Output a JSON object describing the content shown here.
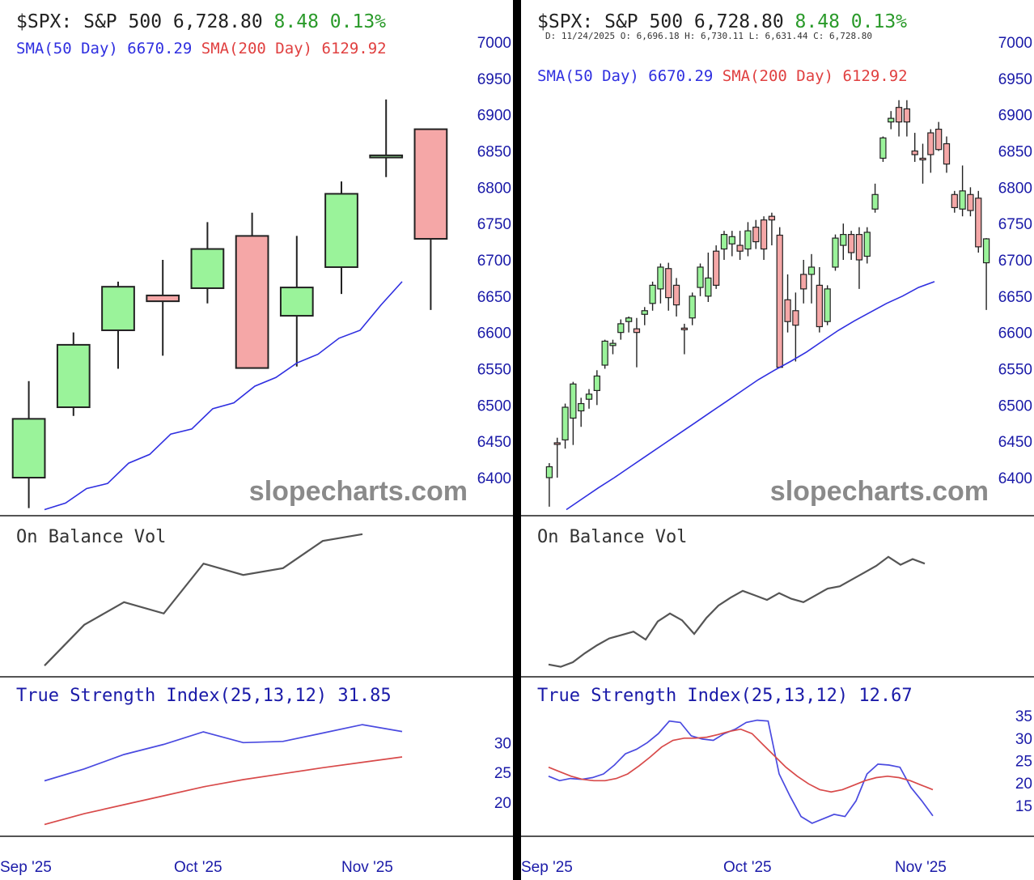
{
  "colors": {
    "up_fill": "#9af39a",
    "down_fill": "#f5a7a7",
    "candle_stroke": "#222222",
    "sma50": "#2f2fe0",
    "tsi_line": "#4a4ae0",
    "tsi_signal": "#d84a4a",
    "price_green": "#2a9a2a",
    "sma200_red": "#e04040",
    "axis_label": "#1a1aa8",
    "obv": "#555555",
    "watermark": "#8a8a8a",
    "separator": "#555555"
  },
  "watermark": "slopecharts.com",
  "panels": [
    {
      "id": "weekly",
      "header": {
        "symbol": "$SPX:",
        "name": "S&P 500",
        "last": "6,728.80",
        "change": "8.48",
        "change_pct": "0.13%",
        "ohlc": ""
      },
      "sma_label": {
        "sma50": "SMA(50 Day) 6670.29",
        "sma200": "SMA(200 Day) 6129.92"
      },
      "obv_title": "On Balance Vol",
      "tsi_title": "True Strength Index(25,13,12) 31.85",
      "x_ticks": [
        {
          "label": "Sep '25",
          "i": 0
        },
        {
          "label": "Oct '25",
          "i": 5
        },
        {
          "label": "Nov '25",
          "i": 10
        }
      ],
      "chart_data": {
        "type": "candlestick",
        "timeframe": "weekly",
        "ylim": [
          6370,
          7010
        ],
        "y_ticks": [
          6400,
          6450,
          6500,
          6550,
          6600,
          6650,
          6700,
          6750,
          6800,
          6850,
          6900,
          6950,
          7000
        ],
        "ohlc": [
          [
            6400,
            6533,
            6358,
            6481
          ],
          [
            6497,
            6600,
            6485,
            6583
          ],
          [
            6603,
            6670,
            6550,
            6663
          ],
          [
            6651,
            6700,
            6568,
            6643
          ],
          [
            6661,
            6752,
            6640,
            6715
          ],
          [
            6733,
            6765,
            6550,
            6551
          ],
          [
            6623,
            6733,
            6553,
            6662
          ],
          [
            6690,
            6808,
            6653,
            6791
          ],
          [
            6841,
            6921,
            6814,
            6844
          ],
          [
            6880,
            6880,
            6631,
            6729
          ]
        ],
        "sma50": [
          6356,
          6365,
          6385,
          6392,
          6420,
          6432,
          6460,
          6467,
          6495,
          6503,
          6526,
          6538,
          6558,
          6570,
          6592,
          6603,
          6638,
          6670
        ],
        "obv": [
          0.02,
          0.38,
          0.58,
          0.48,
          0.92,
          0.82,
          0.88,
          1.12,
          1.18
        ],
        "tsi_ylim": [
          15,
          36
        ],
        "tsi_ticks": [
          20,
          25,
          30
        ],
        "tsi": [
          23.6,
          25.6,
          28.0,
          29.7,
          31.8,
          30.0,
          30.2,
          31.6,
          33.0,
          31.85
        ],
        "tsi_signal": [
          16.3,
          18.1,
          19.6,
          21.1,
          22.6,
          23.8,
          24.8,
          25.8,
          26.7,
          27.6
        ]
      }
    },
    {
      "id": "daily",
      "header": {
        "symbol": "$SPX:",
        "name": "S&P 500",
        "last": "6,728.80",
        "change": "8.48",
        "change_pct": "0.13%",
        "ohlc": "D: 11/24/2025 O: 6,696.18 H: 6,730.11 L: 6,631.44 C: 6,728.80"
      },
      "sma_label": {
        "sma50": "SMA(50 Day) 6670.29",
        "sma200": "SMA(200 Day) 6129.92"
      },
      "obv_title": "On Balance Vol",
      "tsi_title": "True Strength Index(25,13,12) 12.67",
      "x_ticks": [
        {
          "label": "Sep '25",
          "i": 0
        },
        {
          "label": "Oct '25",
          "i": 21
        },
        {
          "label": "Nov '25",
          "i": 43
        }
      ],
      "chart_data": {
        "type": "candlestick",
        "timeframe": "daily",
        "ylim": [
          6370,
          7010
        ],
        "y_ticks": [
          6400,
          6450,
          6500,
          6550,
          6600,
          6650,
          6700,
          6750,
          6800,
          6850,
          6900,
          6950,
          7000
        ],
        "ohlc": [
          [
            6400,
            6420,
            6360,
            6415
          ],
          [
            6448,
            6455,
            6400,
            6446
          ],
          [
            6452,
            6502,
            6440,
            6497
          ],
          [
            6482,
            6532,
            6445,
            6529
          ],
          [
            6492,
            6510,
            6470,
            6502
          ],
          [
            6508,
            6522,
            6495,
            6515
          ],
          [
            6520,
            6548,
            6500,
            6540
          ],
          [
            6555,
            6590,
            6550,
            6588
          ],
          [
            6582,
            6590,
            6570,
            6585
          ],
          [
            6600,
            6618,
            6590,
            6612
          ],
          [
            6615,
            6622,
            6600,
            6620
          ],
          [
            6605,
            6620,
            6552,
            6600
          ],
          [
            6625,
            6635,
            6610,
            6630
          ],
          [
            6640,
            6670,
            6630,
            6665
          ],
          [
            6660,
            6695,
            6640,
            6690
          ],
          [
            6688,
            6696,
            6630,
            6648
          ],
          [
            6665,
            6675,
            6622,
            6638
          ],
          [
            6606,
            6612,
            6570,
            6604
          ],
          [
            6620,
            6655,
            6610,
            6650
          ],
          [
            6662,
            6695,
            6650,
            6690
          ],
          [
            6650,
            6710,
            6642,
            6675
          ],
          [
            6712,
            6720,
            6660,
            6665
          ],
          [
            6715,
            6740,
            6700,
            6735
          ],
          [
            6722,
            6740,
            6705,
            6732
          ],
          [
            6720,
            6740,
            6700,
            6712
          ],
          [
            6715,
            6752,
            6705,
            6740
          ],
          [
            6745,
            6755,
            6715,
            6725
          ],
          [
            6755,
            6760,
            6700,
            6715
          ],
          [
            6760,
            6765,
            6720,
            6755
          ],
          [
            6734,
            6745,
            6551,
            6552
          ],
          [
            6645,
            6680,
            6600,
            6615
          ],
          [
            6630,
            6655,
            6560,
            6610
          ],
          [
            6680,
            6700,
            6640,
            6660
          ],
          [
            6680,
            6708,
            6640,
            6690
          ],
          [
            6665,
            6690,
            6600,
            6608
          ],
          [
            6615,
            6665,
            6610,
            6660
          ],
          [
            6690,
            6735,
            6685,
            6730
          ],
          [
            6720,
            6750,
            6700,
            6735
          ],
          [
            6735,
            6740,
            6700,
            6710
          ],
          [
            6735,
            6745,
            6660,
            6700
          ],
          [
            6705,
            6745,
            6695,
            6738
          ],
          [
            6770,
            6805,
            6765,
            6790
          ],
          [
            6840,
            6870,
            6835,
            6868
          ],
          [
            6890,
            6905,
            6880,
            6895
          ],
          [
            6910,
            6920,
            6870,
            6890
          ],
          [
            6908,
            6920,
            6870,
            6890
          ],
          [
            6850,
            6875,
            6835,
            6845
          ],
          [
            6840,
            6860,
            6805,
            6838
          ],
          [
            6875,
            6880,
            6820,
            6845
          ],
          [
            6880,
            6890,
            6850,
            6852
          ],
          [
            6860,
            6870,
            6820,
            6832
          ],
          [
            6790,
            6795,
            6765,
            6772
          ],
          [
            6770,
            6830,
            6760,
            6795
          ],
          [
            6790,
            6800,
            6760,
            6768
          ],
          [
            6785,
            6795,
            6710,
            6718
          ],
          [
            6696,
            6730,
            6631,
            6729
          ]
        ],
        "sma50": [
          6356,
          6371,
          6386,
          6400,
          6415,
          6430,
          6445,
          6460,
          6475,
          6490,
          6505,
          6520,
          6535,
          6548,
          6560,
          6573,
          6588,
          6603,
          6616,
          6628,
          6640,
          6650,
          6662,
          6670
        ],
        "obv": [
          0.03,
          0.01,
          0.05,
          0.13,
          0.2,
          0.26,
          0.29,
          0.32,
          0.25,
          0.41,
          0.48,
          0.42,
          0.3,
          0.44,
          0.55,
          0.62,
          0.68,
          0.64,
          0.6,
          0.66,
          0.61,
          0.58,
          0.64,
          0.7,
          0.72,
          0.78,
          0.84,
          0.9,
          0.98,
          0.91,
          0.96,
          0.92
        ],
        "tsi_ylim": [
          9,
          37
        ],
        "tsi_ticks": [
          15,
          20,
          25,
          30,
          35
        ],
        "tsi": [
          21.5,
          20.5,
          21.0,
          20.8,
          21.2,
          22.0,
          24.0,
          26.5,
          27.5,
          29.0,
          31.0,
          33.8,
          33.5,
          30.5,
          29.8,
          29.5,
          31.0,
          32.0,
          33.5,
          34.0,
          33.8,
          22.0,
          17.0,
          12.5,
          11.0,
          12.0,
          13.0,
          12.5,
          16.0,
          22.0,
          24.2,
          24.0,
          23.5,
          19.0,
          16.0,
          12.67
        ],
        "tsi_signal": [
          23.5,
          22.5,
          21.5,
          20.8,
          20.5,
          20.5,
          21.0,
          22.0,
          23.8,
          25.8,
          28.0,
          29.5,
          30.0,
          30.0,
          30.2,
          30.8,
          31.5,
          32.0,
          31.0,
          28.5,
          26.0,
          23.5,
          21.5,
          19.8,
          18.5,
          18.0,
          18.5,
          19.5,
          20.5,
          21.2,
          21.5,
          21.2,
          20.5,
          19.5,
          18.5
        ]
      }
    }
  ]
}
